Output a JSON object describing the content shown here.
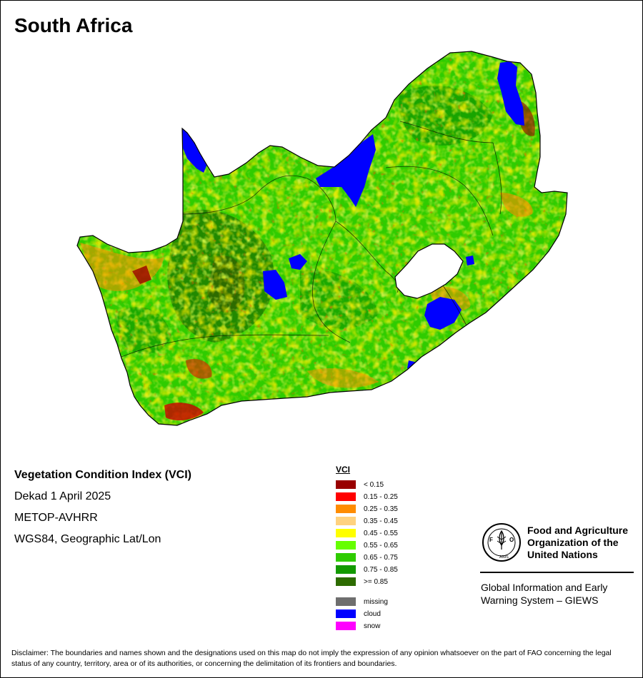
{
  "title": "South Africa",
  "meta": {
    "index_title": "Vegetation Condition Index (VCI)",
    "period": "Dekad 1 April 2025",
    "sensor": "METOP-AVHRR",
    "projection": "WGS84, Geographic Lat/Lon"
  },
  "legend": {
    "title": "VCI",
    "classes": [
      {
        "label": "< 0.15",
        "color": "#990000"
      },
      {
        "label": "0.15 - 0.25",
        "color": "#ff0000"
      },
      {
        "label": "0.25 - 0.35",
        "color": "#ff8c00"
      },
      {
        "label": "0.35 - 0.45",
        "color": "#ffd27f"
      },
      {
        "label": "0.45 - 0.55",
        "color": "#ffff00"
      },
      {
        "label": "0.55 - 0.65",
        "color": "#66ff00"
      },
      {
        "label": "0.65 - 0.75",
        "color": "#2fcc00"
      },
      {
        "label": "0.75 - 0.85",
        "color": "#139a00"
      },
      {
        "label": ">= 0.85",
        "color": "#2d6b00"
      }
    ],
    "extra": [
      {
        "label": "missing",
        "color": "#6e6e6e"
      },
      {
        "label": "cloud",
        "color": "#0000ff"
      },
      {
        "label": "snow",
        "color": "#ff00ff"
      }
    ]
  },
  "organization": {
    "logo_text": "FAO",
    "logo_motto": "FIAT PANIS",
    "name_line1": "Food and Agriculture",
    "name_line2": "Organization of the",
    "name_line3": "United Nations",
    "system_line1": "Global Information and Early",
    "system_line2": "Warning System – GIEWS"
  },
  "disclaimer": "Disclaimer: The boundaries and names shown and the designations used on this map do not imply the expression of any opinion whatsoever on the part of FAO concerning the legal status of any country, territory, area or of its authorities, or concerning the delimitation of its frontiers and boundaries."
}
